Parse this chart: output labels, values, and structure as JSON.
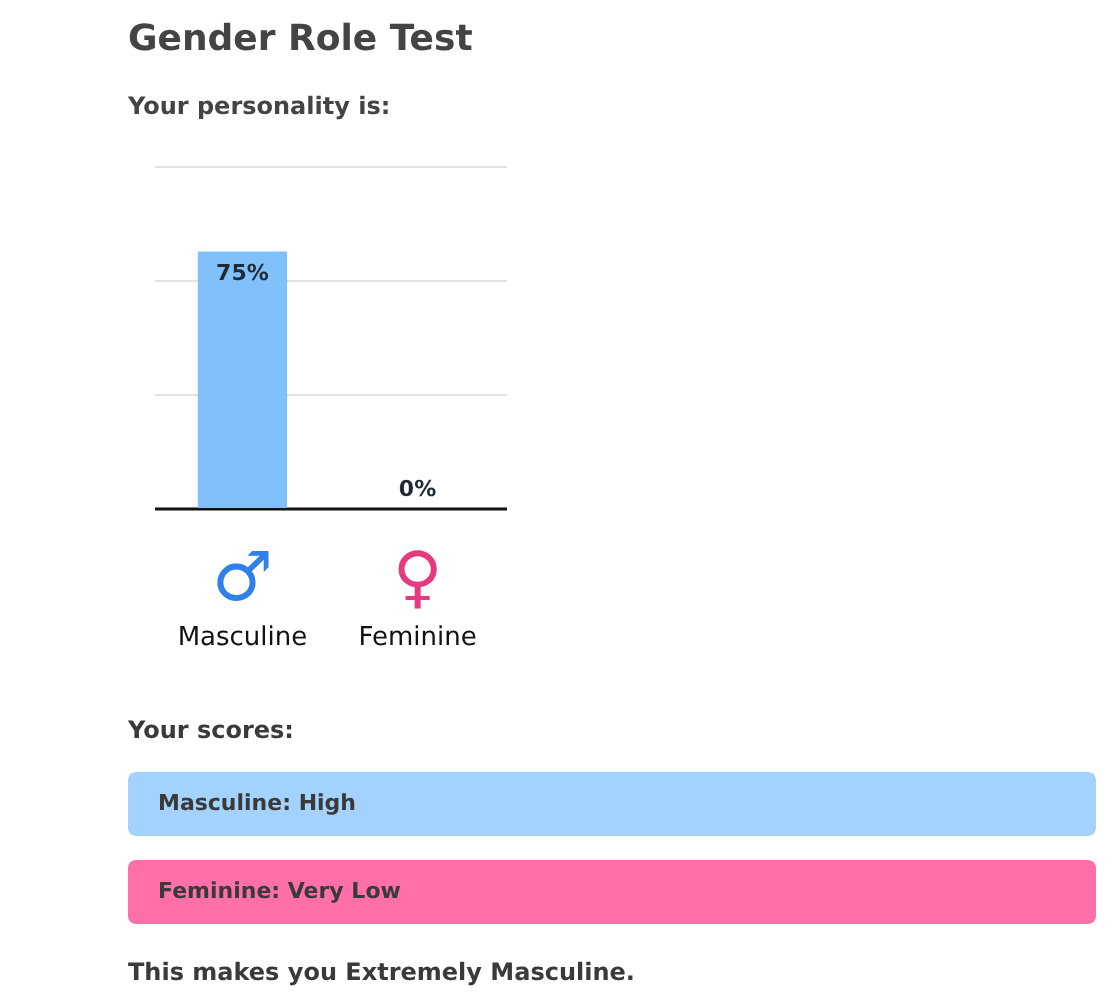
{
  "chart_data": {
    "type": "bar",
    "title": "Gender Role Test",
    "subtitle": "Your personality is:",
    "categories": [
      "Masculine",
      "Feminine"
    ],
    "values": [
      75,
      0
    ],
    "value_labels": [
      "75%",
      "0%"
    ],
    "color": "#80c1fb",
    "ylim": [
      0,
      100
    ],
    "yticks": [
      {
        "value": 0,
        "label": null
      },
      {
        "value": 33.33,
        "label": null
      },
      {
        "value": 66.67,
        "label": null
      },
      {
        "value": 100,
        "label": null
      }
    ],
    "grid": "y",
    "tick_labels": "x",
    "annotations": [
      "♂",
      "♀",
      "Your scores:",
      "Masculine: High",
      "Feminine: Very Low",
      "This makes you Extremely Masculine."
    ]
  }
}
